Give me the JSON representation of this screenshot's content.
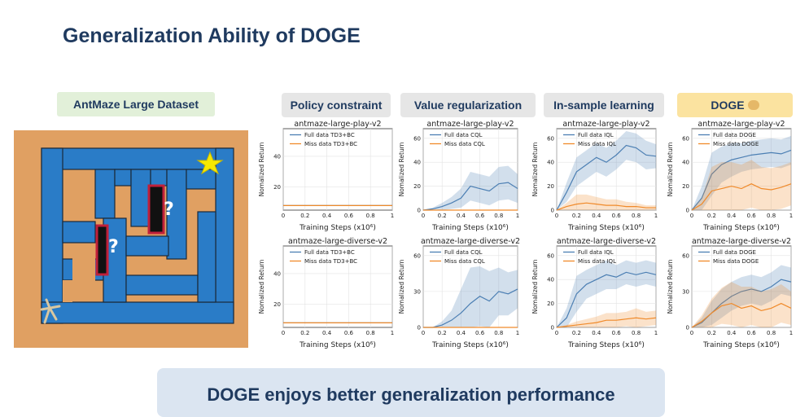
{
  "slide": {
    "title": "Generalization Ability of DOGE",
    "dataset_label": "AntMaze Large Dataset",
    "footer": "DOGE enjoys better generalization performance",
    "method_labels": [
      "Policy constraint",
      "Value regularization",
      "In-sample learning",
      "DOGE"
    ],
    "maze_marks": [
      "?",
      "?"
    ]
  },
  "colors": {
    "full": "#4c7fb3",
    "miss": "#f08a2a",
    "maze_wall": "#e0a062",
    "maze_floor": "#2a7cc7"
  },
  "chart_data": [
    {
      "type": "line",
      "title": "antmaze-large-play-v2",
      "xlabel": "Training Steps (x10⁶)",
      "ylabel": "Nomalized Return",
      "xlim": [
        0,
        1
      ],
      "ylim": [
        5,
        58
      ],
      "yticks": [
        20,
        40
      ],
      "xticks": [
        0.0,
        0.2,
        0.4,
        0.6,
        0.8,
        1.0
      ],
      "series": [
        {
          "name": "Full data TD3+BC",
          "x": [
            0,
            0.1,
            0.2,
            0.3,
            0.4,
            0.5,
            0.6,
            0.7,
            0.8,
            0.9,
            1.0
          ],
          "y": [
            8,
            8,
            8,
            8,
            8,
            8,
            8,
            8,
            8,
            8,
            8
          ]
        },
        {
          "name": "Miss data TD3+BC",
          "x": [
            0,
            0.1,
            0.2,
            0.3,
            0.4,
            0.5,
            0.6,
            0.7,
            0.8,
            0.9,
            1.0
          ],
          "y": [
            8,
            8,
            8,
            8,
            8,
            8,
            8,
            8,
            8,
            8,
            8
          ]
        }
      ]
    },
    {
      "type": "line",
      "title": "antmaze-large-play-v2",
      "xlabel": "Training Steps (x10⁶)",
      "ylabel": "Nomalized Return",
      "xlim": [
        0,
        1
      ],
      "ylim": [
        0,
        68
      ],
      "yticks": [
        0,
        20,
        40,
        60
      ],
      "xticks": [
        0.0,
        0.2,
        0.4,
        0.6,
        0.8,
        1.0
      ],
      "series": [
        {
          "name": "Full data CQL",
          "x": [
            0,
            0.1,
            0.2,
            0.3,
            0.4,
            0.5,
            0.6,
            0.7,
            0.8,
            0.9,
            1.0
          ],
          "y": [
            0,
            1,
            3,
            6,
            10,
            20,
            18,
            16,
            22,
            23,
            18
          ],
          "band": [
            0,
            1,
            3,
            5,
            8,
            12,
            12,
            12,
            14,
            14,
            12
          ]
        },
        {
          "name": "Miss data CQL",
          "x": [
            0,
            0.1,
            0.2,
            0.3,
            0.4,
            0.5,
            0.6,
            0.7,
            0.8,
            0.9,
            1.0
          ],
          "y": [
            0,
            0,
            0,
            0,
            0,
            0,
            0,
            0,
            0,
            0,
            0
          ],
          "band": [
            0,
            0,
            0,
            0,
            0,
            0,
            0,
            0,
            0,
            0,
            0
          ]
        }
      ]
    },
    {
      "type": "line",
      "title": "antmaze-large-play-v2",
      "xlabel": "Training Steps (x10⁶)",
      "ylabel": "Nomalized Return",
      "xlim": [
        0,
        1
      ],
      "ylim": [
        0,
        68
      ],
      "yticks": [
        0,
        20,
        40,
        60
      ],
      "xticks": [
        0.0,
        0.2,
        0.4,
        0.6,
        0.8,
        1.0
      ],
      "series": [
        {
          "name": "Full data IQL",
          "x": [
            0,
            0.1,
            0.2,
            0.3,
            0.4,
            0.5,
            0.6,
            0.7,
            0.8,
            0.9,
            1.0
          ],
          "y": [
            0,
            15,
            32,
            38,
            44,
            40,
            46,
            54,
            52,
            46,
            45
          ],
          "band": [
            0,
            8,
            12,
            12,
            12,
            12,
            12,
            12,
            12,
            12,
            10
          ]
        },
        {
          "name": "Miss data IQL",
          "x": [
            0,
            0.1,
            0.2,
            0.3,
            0.4,
            0.5,
            0.6,
            0.7,
            0.8,
            0.9,
            1.0
          ],
          "y": [
            0,
            3,
            5,
            6,
            5,
            4,
            4,
            3,
            3,
            2,
            2
          ],
          "band": [
            0,
            3,
            8,
            7,
            6,
            5,
            5,
            4,
            3,
            2,
            2
          ]
        }
      ]
    },
    {
      "type": "line",
      "title": "antmaze-large-play-v2",
      "xlabel": "Training Steps (x10⁶)",
      "ylabel": "Nomalized Return",
      "xlim": [
        0,
        1
      ],
      "ylim": [
        0,
        68
      ],
      "yticks": [
        0,
        20,
        40,
        60
      ],
      "xticks": [
        0.0,
        0.2,
        0.4,
        0.6,
        0.8,
        1.0
      ],
      "series": [
        {
          "name": "Full data DOGE",
          "x": [
            0,
            0.1,
            0.2,
            0.3,
            0.4,
            0.5,
            0.6,
            0.7,
            0.8,
            0.9,
            1.0
          ],
          "y": [
            0,
            10,
            30,
            38,
            42,
            44,
            46,
            47,
            48,
            47,
            50
          ],
          "band": [
            0,
            10,
            18,
            15,
            14,
            12,
            12,
            12,
            12,
            12,
            12
          ]
        },
        {
          "name": "Miss data DOGE",
          "x": [
            0,
            0.1,
            0.2,
            0.3,
            0.4,
            0.5,
            0.6,
            0.7,
            0.8,
            0.9,
            1.0
          ],
          "y": [
            0,
            5,
            16,
            18,
            20,
            18,
            22,
            18,
            17,
            19,
            22
          ],
          "band": [
            0,
            5,
            20,
            22,
            20,
            20,
            20,
            18,
            18,
            18,
            18
          ]
        }
      ]
    },
    {
      "type": "line",
      "title": "antmaze-large-diverse-v2",
      "xlabel": "Training Steps (x10⁶)",
      "ylabel": "Nomalized Return",
      "xlim": [
        0,
        1
      ],
      "ylim": [
        5,
        58
      ],
      "yticks": [
        20,
        40
      ],
      "xticks": [
        0.0,
        0.2,
        0.4,
        0.6,
        0.8,
        1.0
      ],
      "series": [
        {
          "name": "Full data TD3+BC",
          "x": [
            0,
            0.1,
            0.2,
            0.3,
            0.4,
            0.5,
            0.6,
            0.7,
            0.8,
            0.9,
            1.0
          ],
          "y": [
            8,
            8,
            8,
            8,
            8,
            8,
            8,
            8,
            8,
            8,
            8
          ]
        },
        {
          "name": "Miss data TD3+BC",
          "x": [
            0,
            0.1,
            0.2,
            0.3,
            0.4,
            0.5,
            0.6,
            0.7,
            0.8,
            0.9,
            1.0
          ],
          "y": [
            8,
            8,
            8,
            8,
            8,
            8,
            8,
            8,
            8,
            8,
            8
          ]
        }
      ]
    },
    {
      "type": "line",
      "title": "antmaze-large-diverse-v2",
      "xlabel": "Training Steps (x10⁶)",
      "ylabel": "Nomalized Return",
      "xlim": [
        0,
        1
      ],
      "ylim": [
        0,
        68
      ],
      "yticks": [
        0,
        30,
        60
      ],
      "xticks": [
        0.0,
        0.2,
        0.4,
        0.6,
        0.8,
        1.0
      ],
      "series": [
        {
          "name": "Full data CQL",
          "x": [
            0,
            0.1,
            0.2,
            0.3,
            0.4,
            0.5,
            0.6,
            0.7,
            0.8,
            0.9,
            1.0
          ],
          "y": [
            0,
            0,
            2,
            6,
            12,
            20,
            26,
            22,
            30,
            28,
            32
          ],
          "band": [
            0,
            0,
            3,
            8,
            20,
            30,
            25,
            25,
            20,
            18,
            16
          ]
        },
        {
          "name": "Miss data CQL",
          "x": [
            0,
            0.1,
            0.2,
            0.3,
            0.4,
            0.5,
            0.6,
            0.7,
            0.8,
            0.9,
            1.0
          ],
          "y": [
            0,
            0,
            0,
            0,
            0,
            0,
            0,
            0,
            0,
            0,
            0
          ],
          "band": [
            0,
            0,
            0,
            0,
            0,
            0,
            0,
            0,
            0,
            0,
            0
          ]
        }
      ]
    },
    {
      "type": "line",
      "title": "antmaze-large-diverse-v2",
      "xlabel": "Training Steps (x10⁶)",
      "ylabel": "Nomalized Return",
      "xlim": [
        0,
        1
      ],
      "ylim": [
        0,
        68
      ],
      "yticks": [
        0,
        20,
        40,
        60
      ],
      "xticks": [
        0.0,
        0.2,
        0.4,
        0.6,
        0.8,
        1.0
      ],
      "series": [
        {
          "name": "Full data IQL",
          "x": [
            0,
            0.1,
            0.2,
            0.3,
            0.4,
            0.5,
            0.6,
            0.7,
            0.8,
            0.9,
            1.0
          ],
          "y": [
            0,
            8,
            28,
            36,
            40,
            44,
            42,
            46,
            44,
            46,
            44
          ],
          "band": [
            0,
            8,
            15,
            12,
            12,
            12,
            10,
            10,
            10,
            10,
            10
          ]
        },
        {
          "name": "Miss data IQL",
          "x": [
            0,
            0.1,
            0.2,
            0.3,
            0.4,
            0.5,
            0.6,
            0.7,
            0.8,
            0.9,
            1.0
          ],
          "y": [
            0,
            1,
            2,
            3,
            4,
            6,
            6,
            7,
            8,
            7,
            8
          ],
          "band": [
            0,
            1,
            3,
            4,
            5,
            6,
            6,
            6,
            8,
            6,
            6
          ]
        }
      ]
    },
    {
      "type": "line",
      "title": "antmaze-large-diverse-v2",
      "xlabel": "Training Steps (x10⁶)",
      "ylabel": "Nomalized Return",
      "xlim": [
        0,
        1
      ],
      "ylim": [
        0,
        68
      ],
      "yticks": [
        0,
        30,
        60
      ],
      "xticks": [
        0.0,
        0.2,
        0.4,
        0.6,
        0.8,
        1.0
      ],
      "series": [
        {
          "name": "Full data DOGE",
          "x": [
            0,
            0.1,
            0.2,
            0.3,
            0.4,
            0.5,
            0.6,
            0.7,
            0.8,
            0.9,
            1.0
          ],
          "y": [
            0,
            4,
            12,
            20,
            26,
            30,
            32,
            30,
            34,
            40,
            38
          ],
          "band": [
            0,
            4,
            10,
            12,
            12,
            12,
            12,
            12,
            12,
            12,
            12
          ]
        },
        {
          "name": "Miss data DOGE",
          "x": [
            0,
            0.1,
            0.2,
            0.3,
            0.4,
            0.5,
            0.6,
            0.7,
            0.8,
            0.9,
            1.0
          ],
          "y": [
            0,
            5,
            12,
            18,
            20,
            16,
            18,
            14,
            16,
            20,
            16
          ],
          "band": [
            0,
            5,
            12,
            15,
            18,
            18,
            16,
            16,
            16,
            16,
            14
          ]
        }
      ]
    }
  ]
}
